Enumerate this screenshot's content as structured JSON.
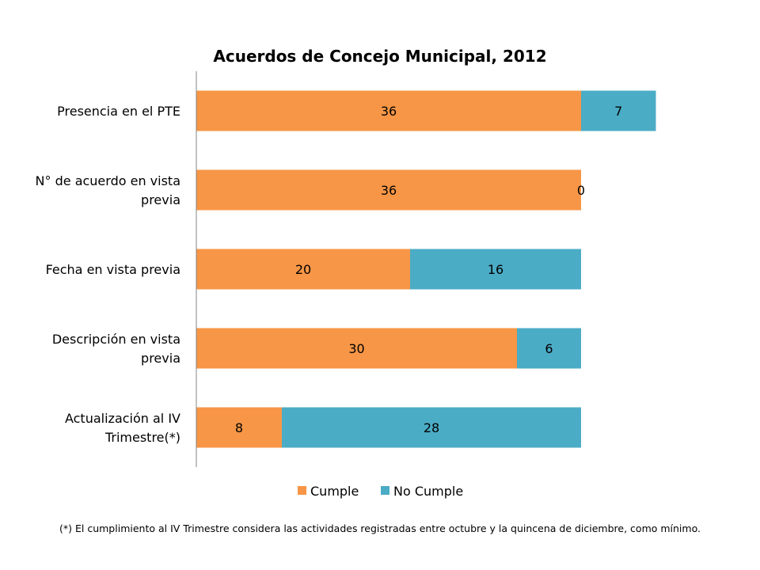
{
  "colors": {
    "cumple": "#F79646",
    "no_cumple": "#4BACC6",
    "axis": "#868686"
  },
  "footnote": "(*) El cumplimiento  al IV Trimestre considera las actividades registradas entre octubre y la quincena de diciembre, como mínimo.",
  "chart_data": {
    "type": "bar",
    "orientation": "horizontal",
    "stacked": true,
    "title": "Acuerdos de Concejo Municipal, 2012",
    "categories": [
      [
        "Presencia en el PTE"
      ],
      [
        "N° de acuerdo en vista",
        "previa"
      ],
      [
        "Fecha en vista previa"
      ],
      [
        "Descripción en vista",
        "previa"
      ],
      [
        "Actualización al IV",
        "Trimestre(*)"
      ]
    ],
    "series": [
      {
        "name": "Cumple",
        "values": [
          36,
          36,
          20,
          30,
          8
        ]
      },
      {
        "name": "No Cumple",
        "values": [
          7,
          0,
          16,
          6,
          28
        ]
      }
    ],
    "xlim": [
      0,
      50
    ],
    "grid": false,
    "legend": "bottom",
    "data_labels": true
  }
}
